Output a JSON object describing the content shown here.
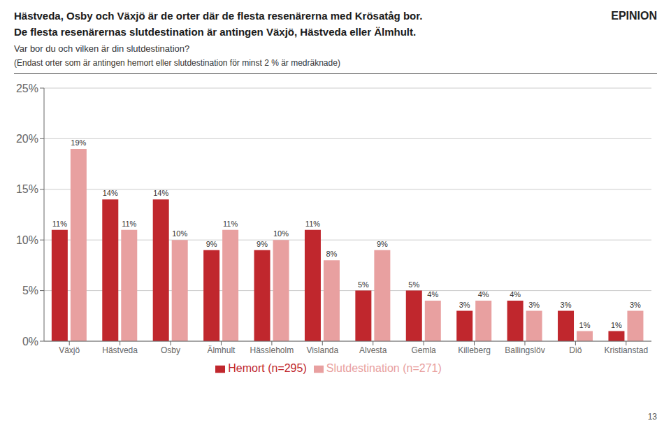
{
  "chart_data": {
    "type": "bar",
    "title": "Hästveda, Osby och Växjö är de orter där de flesta resenärerna med Krösatåg bor.\nDe flesta resenärernas slutdestination är antingen Växjö, Hästveda eller Älmhult.",
    "subtitle": "(Endast orter som är antingen hemort eller slutdestination för minst 2 % är medräknade)",
    "annotations": [
      "Var bor du och vilken är din slutdestination?",
      "EPINION",
      "13"
    ],
    "categories": [
      "Växjö",
      "Hästveda",
      "Osby",
      "Älmhult",
      "Hässleholm",
      "Vislanda",
      "Alvesta",
      "Gemla",
      "Killeberg",
      "Ballingslöv",
      "Diö",
      "Kristianstad"
    ],
    "series": [
      {
        "name": "Hemort (n=295)",
        "color": "#c0272d",
        "values": [
          11,
          14,
          14,
          9,
          9,
          11,
          5,
          5,
          3,
          4,
          3,
          1
        ],
        "value_labels": [
          "11%",
          "14%",
          "14%",
          "9%",
          "9%",
          "11%",
          "5%",
          "5%",
          "3%",
          "4%",
          "3%",
          "1%"
        ]
      },
      {
        "name": "Slutdestination (n=271)",
        "color": "#e8a0a0",
        "values": [
          19,
          11,
          10,
          11,
          10,
          8,
          9,
          4,
          4,
          3,
          1,
          3
        ],
        "value_labels": [
          "19%",
          "11%",
          "10%",
          "11%",
          "10%",
          "8%",
          "9%",
          "4%",
          "4%",
          "3%",
          "1%",
          "3%"
        ]
      }
    ],
    "ylim": [
      0,
      25
    ],
    "yticks": [
      {
        "value": 0,
        "label": "0%"
      },
      {
        "value": 5,
        "label": "5%"
      },
      {
        "value": 10,
        "label": "10%"
      },
      {
        "value": 15,
        "label": "15%"
      },
      {
        "value": 20,
        "label": "20%"
      },
      {
        "value": 25,
        "label": "25%"
      }
    ],
    "grid": true,
    "legend": "bottom",
    "data_labels": true
  }
}
